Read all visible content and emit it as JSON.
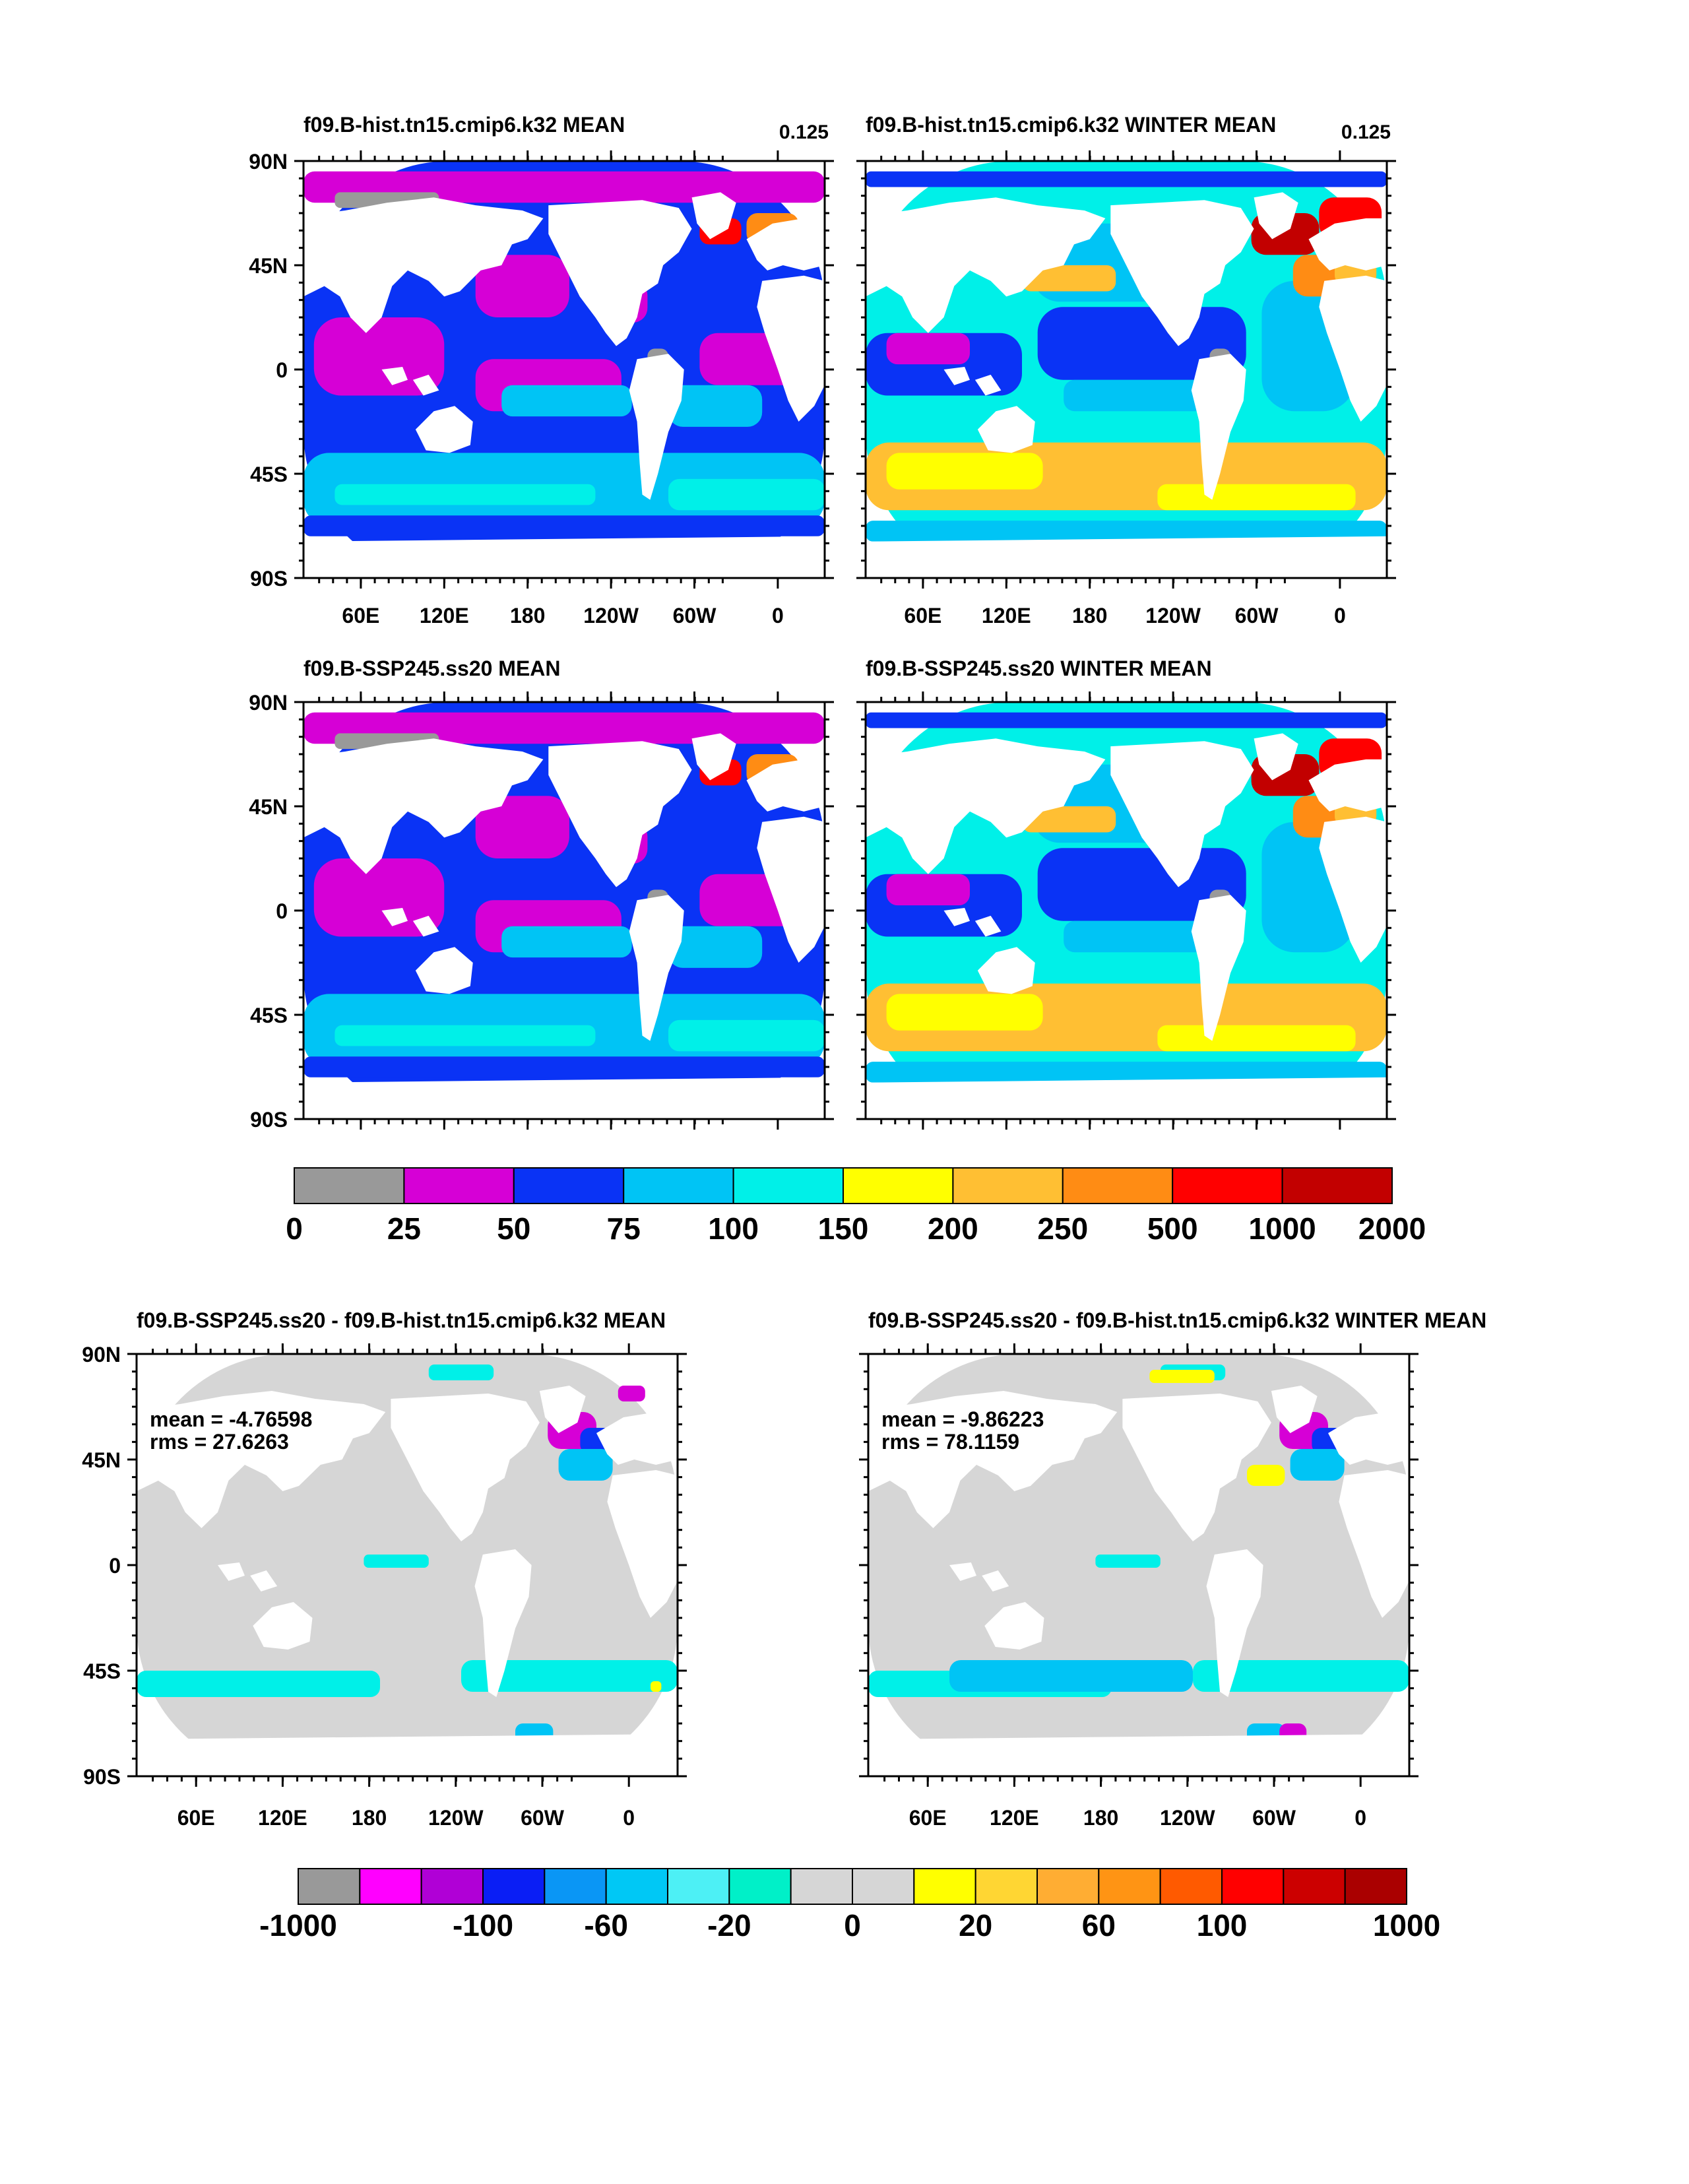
{
  "panels": [
    {
      "title": "f09.B-hist.tn15.cmip6.k32 MEAN",
      "corner_label": "0.125",
      "lat_labels": [
        "90N",
        "45N",
        "0",
        "45S",
        "90S"
      ],
      "lon_labels": [
        "60E",
        "120E",
        "180",
        "120W",
        "60W",
        "0"
      ],
      "stats": null
    },
    {
      "title": "f09.B-hist.tn15.cmip6.k32 WINTER MEAN",
      "corner_label": "0.125",
      "lat_labels": [],
      "lon_labels": [
        "60E",
        "120E",
        "180",
        "120W",
        "60W",
        "0"
      ],
      "stats": null
    },
    {
      "title": "f09.B-SSP245.ss20 MEAN",
      "corner_label": "",
      "lat_labels": [
        "90N",
        "45N",
        "0",
        "45S",
        "90S"
      ],
      "lon_labels": [],
      "stats": null
    },
    {
      "title": "f09.B-SSP245.ss20 WINTER MEAN",
      "corner_label": "",
      "lat_labels": [],
      "lon_labels": [],
      "stats": null
    },
    {
      "title": "f09.B-SSP245.ss20 - f09.B-hist.tn15.cmip6.k32 MEAN",
      "corner_label": "",
      "lat_labels": [
        "90N",
        "45N",
        "0",
        "45S",
        "90S"
      ],
      "lon_labels": [
        "60E",
        "120E",
        "180",
        "120W",
        "60W",
        "0"
      ],
      "stats": {
        "mean": "mean = -4.76598",
        "rms": "rms = 27.6263"
      }
    },
    {
      "title": "f09.B-SSP245.ss20 - f09.B-hist.tn15.cmip6.k32 WINTER MEAN",
      "corner_label": "",
      "lat_labels": [],
      "lon_labels": [
        "60E",
        "120E",
        "180",
        "120W",
        "60W",
        "0"
      ],
      "stats": {
        "mean": "mean = -9.86223",
        "rms": "rms = 78.1159"
      }
    }
  ],
  "colorbar_abs": {
    "colors": [
      "#999999",
      "#d600d6",
      "#0a33f5",
      "#00c4f5",
      "#00f0e8",
      "#ffff00",
      "#ffbf33",
      "#ff8c14",
      "#ff0000",
      "#c20000"
    ],
    "labels": [
      "0",
      "25",
      "50",
      "75",
      "100",
      "150",
      "200",
      "250",
      "500",
      "1000",
      "2000"
    ]
  },
  "colorbar_diff": {
    "colors": [
      "#999999",
      "#ff00ff",
      "#b000d6",
      "#0a1ef5",
      "#0a96f5",
      "#00c8f5",
      "#4df0f5",
      "#00f0c8",
      "#d6d6d6",
      "#d6d6d6",
      "#ffff00",
      "#ffd633",
      "#ffad33",
      "#ff9414",
      "#ff5a00",
      "#ff0000",
      "#cc0000",
      "#aa0000"
    ],
    "labels": [
      "-1000",
      "-100",
      "-60",
      "-20",
      "0",
      "20",
      "60",
      "100",
      "1000"
    ]
  },
  "palette": {
    "land": "#ffffff",
    "gray": "#999999",
    "magenta": "#d600d6",
    "blue": "#0a33f5",
    "lightblue": "#00c4f5",
    "cyan": "#00f0e8",
    "yellow": "#ffff00",
    "lightorange": "#ffbf33",
    "orange": "#ff8c14",
    "red": "#ff0000",
    "darkred": "#c20000",
    "diffgray": "#d6d6d6"
  }
}
